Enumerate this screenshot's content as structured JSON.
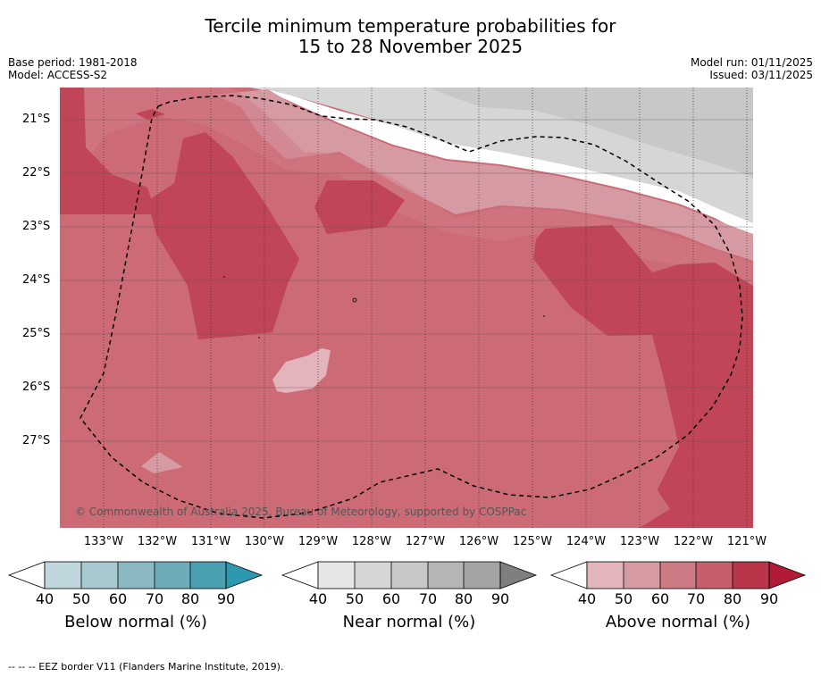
{
  "title_line1": "Tercile minimum temperature probabilities for",
  "title_line2": "15 to 28 November 2025",
  "base_period": "Base period: 1981-2018",
  "model": "Model: ACCESS-S2",
  "model_run": "Model run: 01/11/2025",
  "issued": "Issued: 03/11/2025",
  "lat_labels": [
    "21°S",
    "22°S",
    "23°S",
    "24°S",
    "25°S",
    "26°S",
    "27°S"
  ],
  "lon_labels": [
    "133°W",
    "132°W",
    "131°W",
    "130°W",
    "129°W",
    "128°W",
    "127°W",
    "126°W",
    "125°W",
    "124°W",
    "123°W",
    "122°W",
    "121°W"
  ],
  "copyright": "© Commonwealth of Australia 2025, Bureau of Meteorology, supported by COSPPac",
  "colorbars": [
    {
      "label": "Below normal (%)",
      "ticks": [
        "40",
        "50",
        "60",
        "70",
        "80",
        "90"
      ],
      "colors": [
        "#bed6dc",
        "#a7c9cf",
        "#8bb9c3",
        "#6eabb9",
        "#4aa0b1",
        "#2e99ae"
      ]
    },
    {
      "label": "Near normal (%)",
      "ticks": [
        "40",
        "50",
        "60",
        "70",
        "80",
        "90"
      ],
      "colors": [
        "#e6e6e6",
        "#d6d6d6",
        "#c8c8c8",
        "#b5b5b5",
        "#a3a3a3",
        "#7f7f7f"
      ]
    },
    {
      "label": "Above normal (%)",
      "ticks": [
        "40",
        "50",
        "60",
        "70",
        "80",
        "90"
      ],
      "colors": [
        "#e3b4bb",
        "#d69aa2",
        "#cc7a84",
        "#c45f6b",
        "#b9364a",
        "#b21b37"
      ]
    }
  ],
  "footer": "--  --  -- EEZ border V11 (Flanders Marine Institute, 2019)."
}
